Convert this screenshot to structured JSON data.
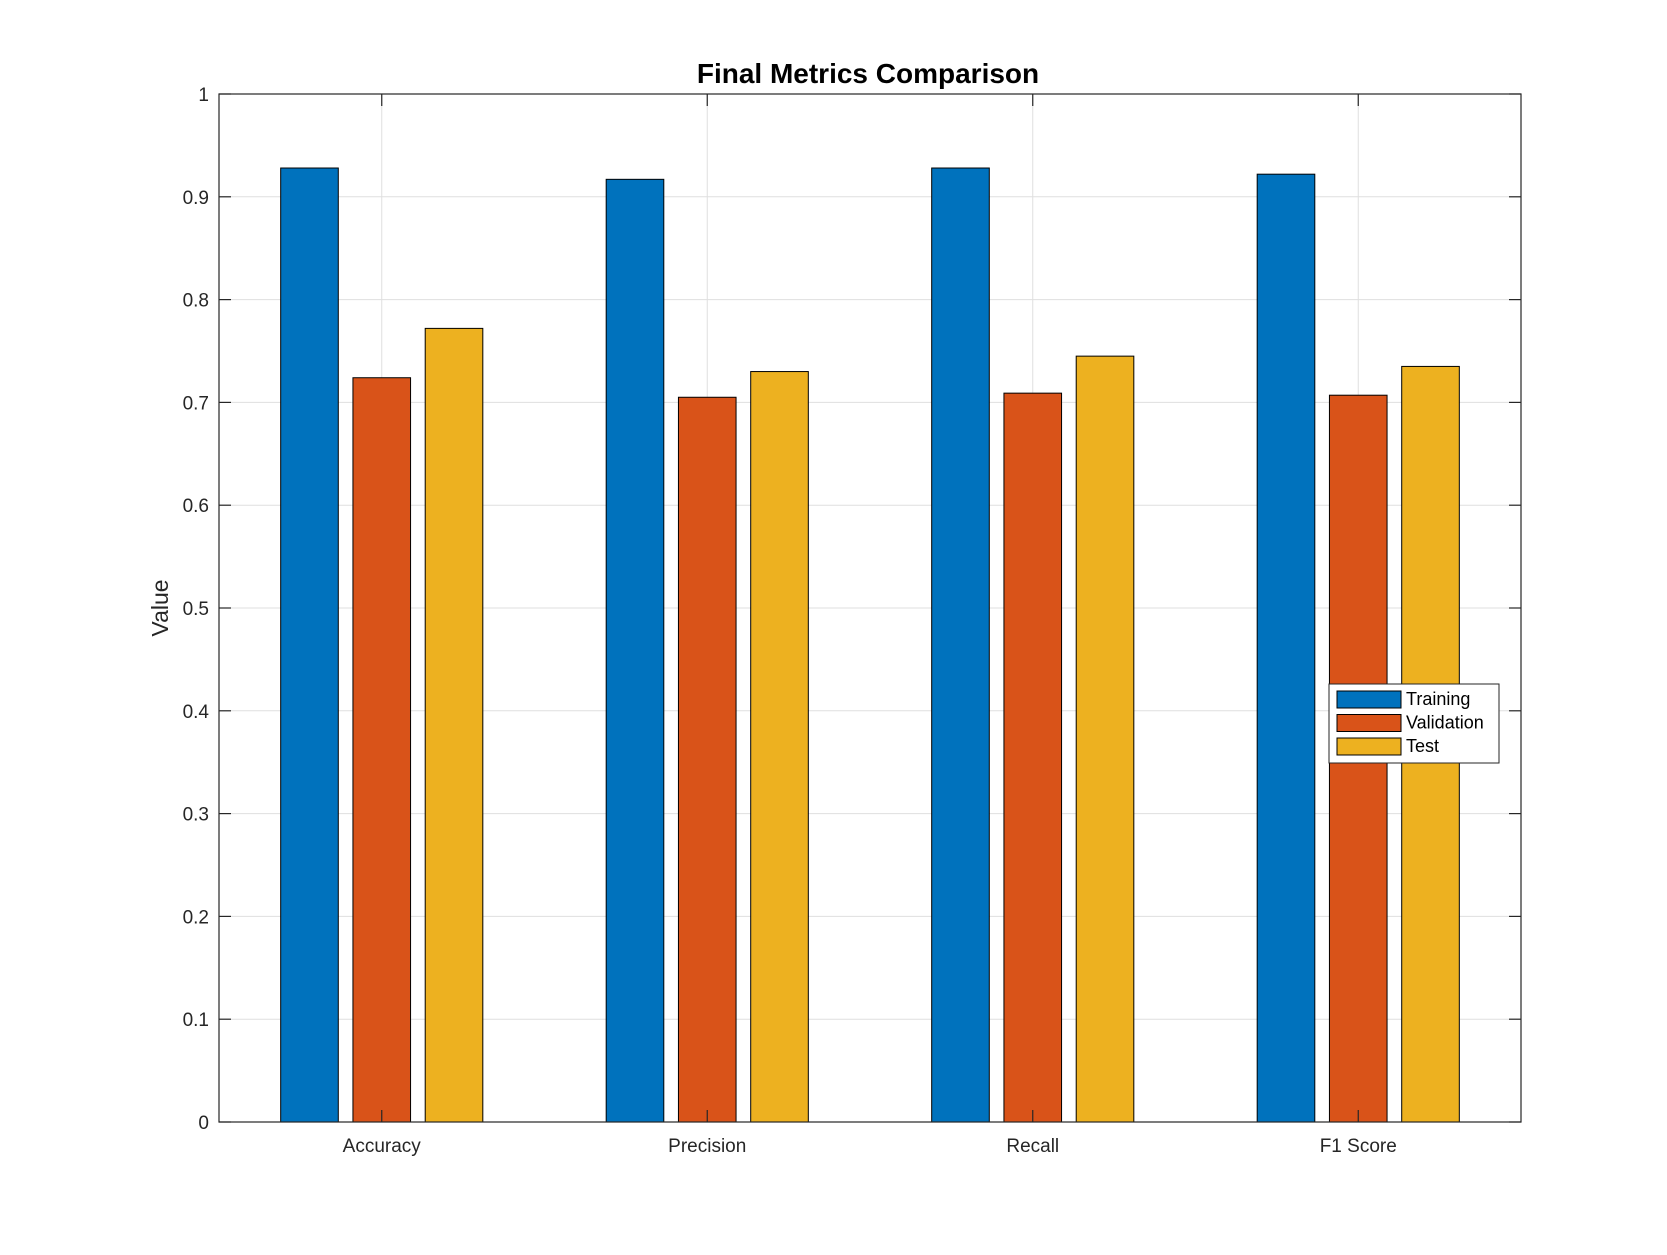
{
  "chart_data": {
    "type": "bar",
    "title": "Final Metrics Comparison",
    "xlabel": "",
    "ylabel": "Value",
    "ylim": [
      0,
      1
    ],
    "yticks": [
      "0",
      "0.1",
      "0.2",
      "0.3",
      "0.4",
      "0.5",
      "0.6",
      "0.7",
      "0.8",
      "0.9",
      "1"
    ],
    "categories": [
      "Accuracy",
      "Precision",
      "Recall",
      "F1 Score"
    ],
    "series": [
      {
        "name": "Training",
        "color": "#0072BD",
        "values": [
          0.928,
          0.917,
          0.928,
          0.922
        ]
      },
      {
        "name": "Validation",
        "color": "#D95319",
        "values": [
          0.724,
          0.705,
          0.709,
          0.707
        ]
      },
      {
        "name": "Test",
        "color": "#EDB120",
        "values": [
          0.772,
          0.73,
          0.745,
          0.735
        ]
      }
    ],
    "grid": true,
    "legend_position": "right"
  }
}
